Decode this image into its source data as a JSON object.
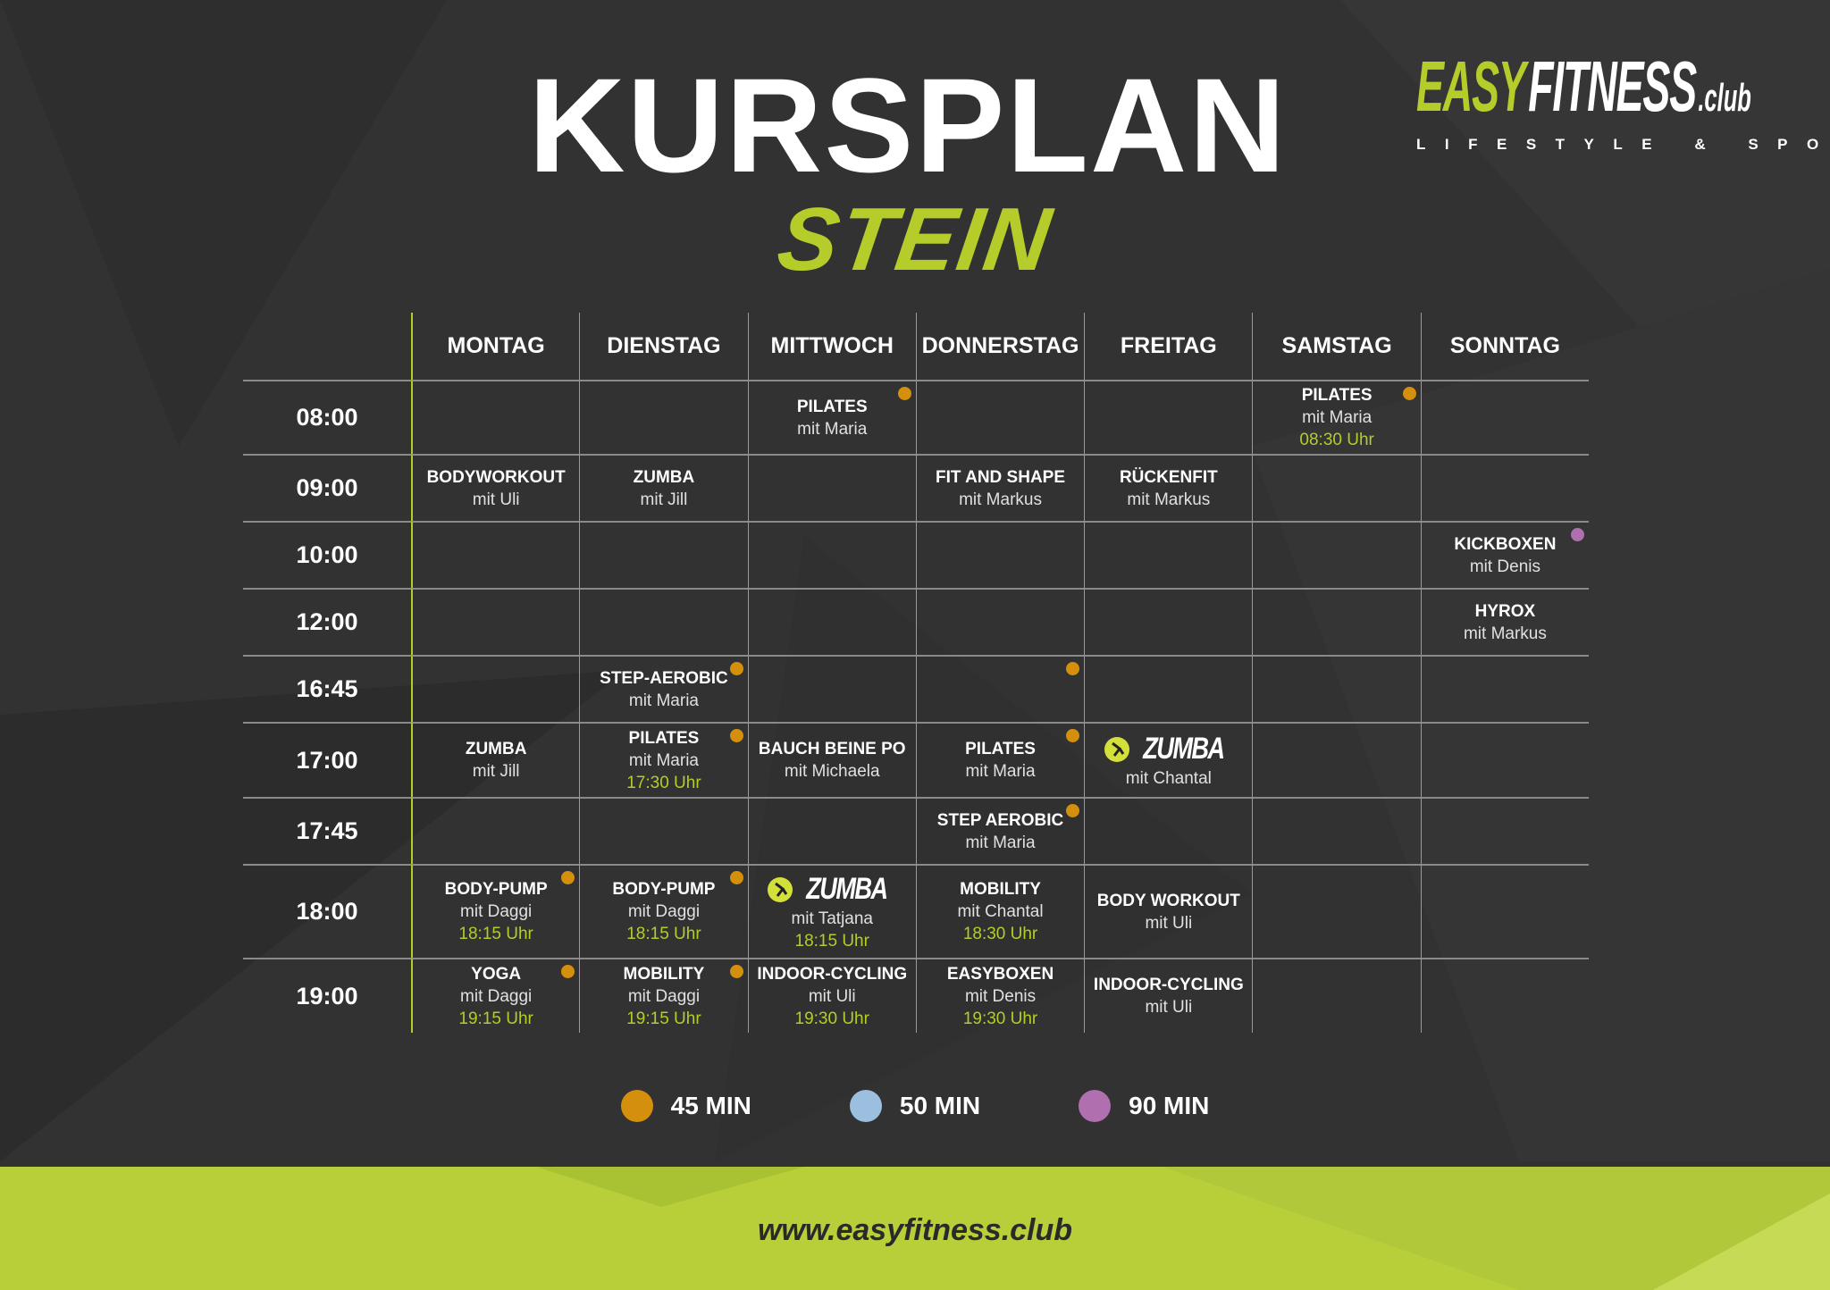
{
  "brand": {
    "easy": "EASY",
    "fitness": "FITNESS",
    "club": ".club",
    "tagline": "LIFESTYLE & SPORT"
  },
  "header": {
    "title": "KURSPLAN",
    "subtitle": "STEIN"
  },
  "colors": {
    "accent": "#b5cc2a",
    "background": "#323232",
    "dot_45": "#d4900c",
    "dot_50": "#9dbfdf",
    "dot_90": "#b070b0"
  },
  "days": [
    "MONTAG",
    "DIENSTAG",
    "MITTWOCH",
    "DONNERSTAG",
    "FREITAG",
    "SAMSTAG",
    "SONNTAG"
  ],
  "rows": [
    {
      "time": "08:00",
      "cells": [
        null,
        null,
        {
          "title": "PILATES",
          "trainer": "mit Maria",
          "dot": "45"
        },
        null,
        null,
        {
          "title": "PILATES",
          "trainer": "mit Maria",
          "time": "08:30 Uhr",
          "dot": "45"
        },
        null
      ]
    },
    {
      "time": "09:00",
      "cells": [
        {
          "title": "BODYWORKOUT",
          "trainer": "mit Uli"
        },
        {
          "title": "ZUMBA",
          "trainer": "mit Jill"
        },
        null,
        {
          "title": "FIT AND SHAPE",
          "trainer": "mit Markus"
        },
        {
          "title": "RÜCKENFIT",
          "trainer": "mit Markus"
        },
        null,
        null
      ]
    },
    {
      "time": "10:00",
      "cells": [
        null,
        null,
        null,
        null,
        null,
        null,
        {
          "title": "KICKBOXEN",
          "trainer": "mit Denis",
          "dot": "90"
        }
      ]
    },
    {
      "time": "12:00",
      "cells": [
        null,
        null,
        null,
        null,
        null,
        null,
        {
          "title": "HYROX",
          "trainer": "mit Markus"
        }
      ]
    },
    {
      "time": "16:45",
      "cells": [
        null,
        {
          "title": "STEP-AEROBIC",
          "trainer": "mit Maria",
          "dot": "45"
        },
        null,
        {
          "dot": "45"
        },
        null,
        null,
        null
      ]
    },
    {
      "time": "17:00",
      "cells": [
        {
          "title": "ZUMBA",
          "trainer": "mit Jill"
        },
        {
          "title": "PILATES",
          "trainer": "mit Maria",
          "time": "17:30 Uhr",
          "dot": "45"
        },
        {
          "title": "BAUCH BEINE PO",
          "trainer": "mit Michaela"
        },
        {
          "title": "PILATES",
          "trainer": "mit Maria",
          "dot": "45"
        },
        {
          "logo": "ZUMBA",
          "trainer": "mit Chantal"
        },
        null,
        null
      ]
    },
    {
      "time": "17:45",
      "cells": [
        null,
        null,
        null,
        {
          "title": "STEP AEROBIC",
          "trainer": "mit Maria",
          "dot": "45"
        },
        null,
        null,
        null
      ]
    },
    {
      "time": "18:00",
      "cells": [
        {
          "title": "BODY-PUMP",
          "trainer": "mit Daggi",
          "time": "18:15 Uhr",
          "dot": "45"
        },
        {
          "title": "BODY-PUMP",
          "trainer": "mit Daggi",
          "time": "18:15 Uhr",
          "dot": "45"
        },
        {
          "logo": "ZUMBA",
          "trainer": "mit Tatjana",
          "time": "18:15 Uhr"
        },
        {
          "title": "MOBILITY",
          "trainer": "mit Chantal",
          "time": "18:30 Uhr"
        },
        {
          "title": "BODY WORKOUT",
          "trainer": "mit Uli"
        },
        null,
        null
      ]
    },
    {
      "time": "19:00",
      "cells": [
        {
          "title": "YOGA",
          "trainer": "mit Daggi",
          "time": "19:15 Uhr",
          "dot": "45"
        },
        {
          "title": "MOBILITY",
          "trainer": "mit Daggi",
          "time": "19:15 Uhr",
          "dot": "45"
        },
        {
          "title": "INDOOR-CYCLING",
          "trainer": "mit Uli",
          "time": "19:30 Uhr"
        },
        {
          "title": "EASYBOXEN",
          "trainer": "mit Denis",
          "time": "19:30 Uhr"
        },
        {
          "title": "INDOOR-CYCLING",
          "trainer": "mit Uli"
        },
        null,
        null
      ]
    }
  ],
  "legend": [
    {
      "label": "45 MIN",
      "color": "#d4900c"
    },
    {
      "label": "50 MIN",
      "color": "#9dbfdf"
    },
    {
      "label": "90 MIN",
      "color": "#b070b0"
    }
  ],
  "footer": {
    "url": "www.easyfitness.club"
  }
}
